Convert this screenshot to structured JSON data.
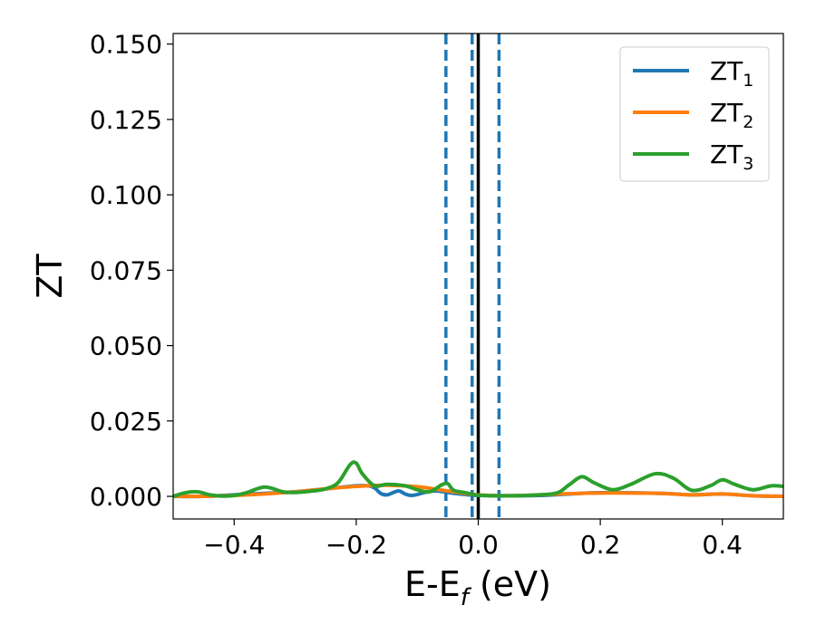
{
  "chart_data": {
    "type": "line",
    "xlabel": {
      "base": "E-E",
      "sub": "f",
      "tail": " (eV)"
    },
    "ylabel": "ZT",
    "xlim": [
      -0.5,
      0.5
    ],
    "ylim": [
      -0.0075,
      0.1535
    ],
    "x_ticks": [
      -0.4,
      -0.2,
      0.0,
      0.2,
      0.4
    ],
    "x_tick_labels": [
      "−0.4",
      "−0.2",
      "0.0",
      "0.2",
      "0.4"
    ],
    "y_ticks": [
      0.0,
      0.025,
      0.05,
      0.075,
      0.1,
      0.125,
      0.15
    ],
    "y_tick_labels": [
      "0.000",
      "0.025",
      "0.050",
      "0.075",
      "0.100",
      "0.125",
      "0.150"
    ],
    "grid": false,
    "legend_position": "top-right",
    "vertical_lines": [
      {
        "x": -0.053,
        "color": "#1f77b4",
        "style": "dashed"
      },
      {
        "x": -0.01,
        "color": "#1f77b4",
        "style": "dashed"
      },
      {
        "x": 0.0,
        "color": "#000000",
        "style": "solid"
      },
      {
        "x": 0.034,
        "color": "#1f77b4",
        "style": "dashed"
      }
    ],
    "series": [
      {
        "legend": {
          "base": "ZT",
          "sub": "1"
        },
        "color": "#1f77b4",
        "x": [
          -0.5,
          -0.45,
          -0.4,
          -0.35,
          -0.3,
          -0.25,
          -0.2,
          -0.18,
          -0.17,
          -0.16,
          -0.15,
          -0.14,
          -0.13,
          -0.12,
          -0.11,
          -0.1,
          -0.09,
          -0.08,
          -0.07,
          -0.06,
          -0.05,
          -0.04,
          -0.03,
          -0.02,
          -0.01,
          0.0,
          0.05,
          0.1,
          0.15,
          0.2,
          0.3,
          0.35,
          0.4,
          0.45,
          0.5
        ],
        "y": [
          0.0,
          0.0,
          0.0005,
          0.001,
          0.0015,
          0.0025,
          0.0035,
          0.0035,
          0.0028,
          0.001,
          0.0005,
          0.0012,
          0.0018,
          0.0008,
          0.0003,
          0.0006,
          0.0012,
          0.0016,
          0.0018,
          0.0016,
          0.0013,
          0.001,
          0.0008,
          0.0006,
          0.0004,
          0.0003,
          0.0002,
          0.0003,
          0.0008,
          0.0012,
          0.001,
          0.0005,
          0.0008,
          0.0002,
          0.0
        ]
      },
      {
        "legend": {
          "base": "ZT",
          "sub": "2"
        },
        "color": "#ff7f0e",
        "x": [
          -0.5,
          -0.45,
          -0.4,
          -0.35,
          -0.3,
          -0.25,
          -0.2,
          -0.15,
          -0.1,
          -0.05,
          0.0,
          0.05,
          0.1,
          0.15,
          0.2,
          0.25,
          0.3,
          0.35,
          0.4,
          0.45,
          0.5
        ],
        "y": [
          0.0,
          0.0,
          0.0003,
          0.0008,
          0.0015,
          0.0025,
          0.0033,
          0.0037,
          0.0032,
          0.0018,
          0.0005,
          0.0002,
          0.0005,
          0.0009,
          0.0011,
          0.0011,
          0.001,
          0.0005,
          0.0008,
          0.0002,
          0.0
        ]
      },
      {
        "legend": {
          "base": "ZT",
          "sub": "3"
        },
        "color": "#2ca02c",
        "x": [
          -0.5,
          -0.48,
          -0.46,
          -0.44,
          -0.42,
          -0.4,
          -0.38,
          -0.35,
          -0.32,
          -0.3,
          -0.27,
          -0.25,
          -0.23,
          -0.21,
          -0.2,
          -0.19,
          -0.17,
          -0.15,
          -0.12,
          -0.1,
          -0.08,
          -0.06,
          -0.05,
          -0.04,
          -0.02,
          0.0,
          0.05,
          0.1,
          0.13,
          0.15,
          0.17,
          0.19,
          0.22,
          0.25,
          0.29,
          0.32,
          0.35,
          0.38,
          0.4,
          0.42,
          0.45,
          0.48,
          0.5
        ],
        "y": [
          0.0,
          0.0012,
          0.0015,
          0.0005,
          0.0001,
          0.0003,
          0.0012,
          0.0031,
          0.0015,
          0.0013,
          0.0018,
          0.0025,
          0.0045,
          0.0105,
          0.011,
          0.0075,
          0.0035,
          0.004,
          0.0035,
          0.0022,
          0.0015,
          0.0038,
          0.0042,
          0.002,
          0.0012,
          0.0004,
          0.0002,
          0.0005,
          0.0012,
          0.004,
          0.0065,
          0.0045,
          0.0022,
          0.004,
          0.0075,
          0.006,
          0.002,
          0.0035,
          0.0055,
          0.004,
          0.0022,
          0.0035,
          0.0033
        ]
      }
    ]
  }
}
